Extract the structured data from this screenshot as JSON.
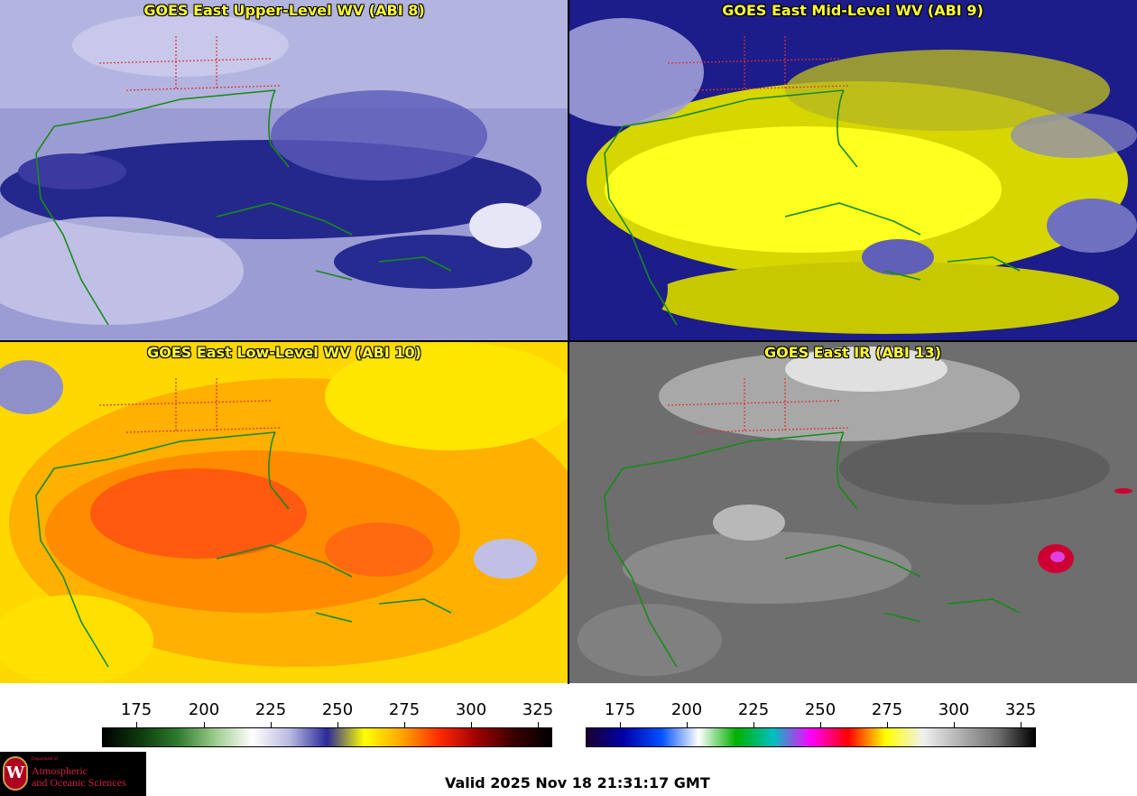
{
  "panels": [
    {
      "id": "upper",
      "title": "GOES East Upper-Level WV (ABI 8)",
      "palette": "blue-white"
    },
    {
      "id": "mid",
      "title": "GOES East Mid-Level WV (ABI 9)",
      "palette": "yellow-blue"
    },
    {
      "id": "low",
      "title": "GOES East Low-Level WV (ABI 10)",
      "palette": "orange-yellow"
    },
    {
      "id": "ir",
      "title": "GOES East IR (ABI 13)",
      "palette": "grayscale"
    }
  ],
  "colorbars": [
    {
      "name": "water-vapor-scale",
      "ticks": [
        "175",
        "200",
        "225",
        "250",
        "275",
        "300",
        "325"
      ],
      "colors": [
        "#000000",
        "#0e3a0e",
        "#2f7a2f",
        "#9ccb8c",
        "#ffffff",
        "#b9b9e0",
        "#2a2a9a",
        "#ffff00",
        "#ffa500",
        "#ff2a00",
        "#a00000",
        "#3a0000",
        "#000000"
      ]
    },
    {
      "name": "ir-scale",
      "ticks": [
        "175",
        "200",
        "225",
        "250",
        "275",
        "300",
        "325"
      ],
      "colors": [
        "#1a0030",
        "#0000aa",
        "#0050ff",
        "#ffffff",
        "#00b000",
        "#00c0c0",
        "#ff00ff",
        "#ff0000",
        "#ffff00",
        "#f0f0f0",
        "#b0b0b0",
        "#707070",
        "#000000"
      ]
    }
  ],
  "logo": {
    "department": "Department of",
    "line1": "Atmospheric",
    "line2": "and Oceanic Sciences",
    "seal_letter": "W"
  },
  "valid_time": "Valid 2025 Nov 18 21:31:17 GMT",
  "colors": {
    "coastline": "#1a8a1a",
    "state_border": "#e03030",
    "title_text": "#ffff33"
  }
}
